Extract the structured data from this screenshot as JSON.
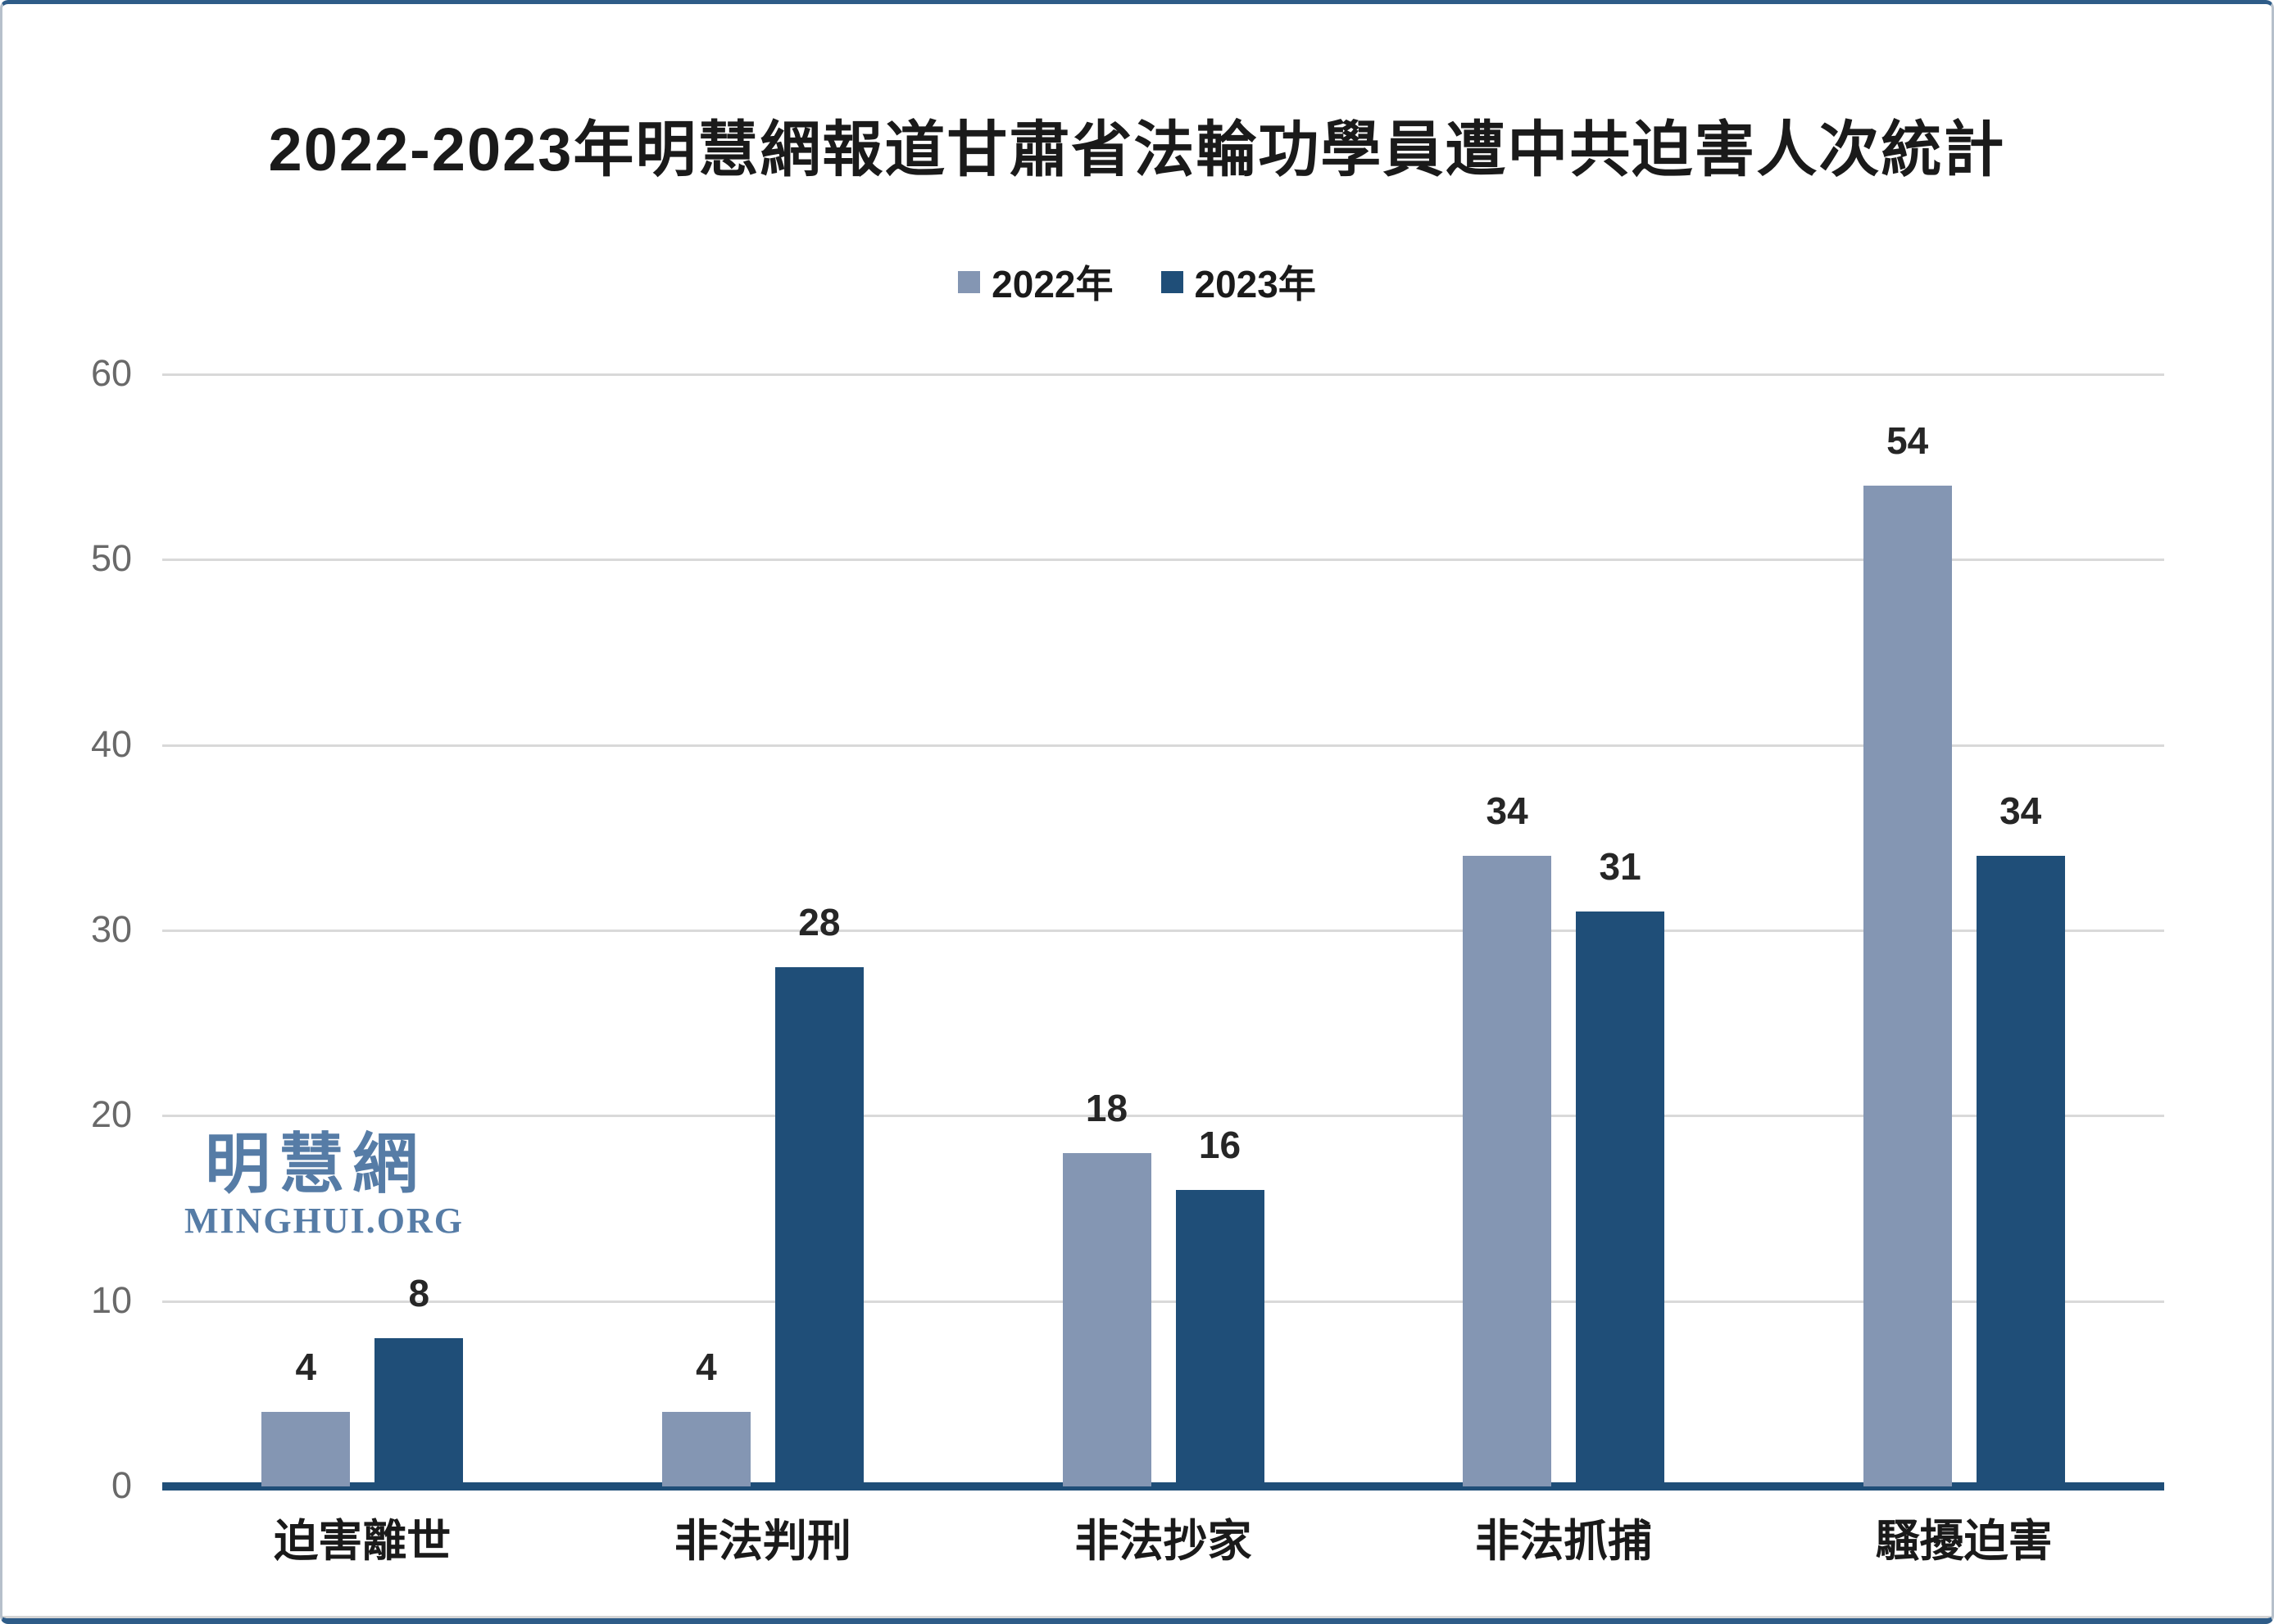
{
  "title": "2022-2023年明慧網報道甘肅省法輪功學員遭中共迫害人次統計",
  "watermark": {
    "cjk": "明慧網",
    "latin": "MINGHUI.ORG"
  },
  "colors": {
    "series_2022": "#8496b3",
    "series_2023": "#1f4e78",
    "axis_line": "#1f4e78",
    "gridline": "#d9d9d9",
    "tick_text": "#696969",
    "label_text": "#262626",
    "watermark": "#567ca6",
    "frame": "#2e5c88"
  },
  "chart_data": {
    "type": "bar",
    "categories": [
      "迫害離世",
      "非法判刑",
      "非法抄家",
      "非法抓捕",
      "騷擾迫害"
    ],
    "series": [
      {
        "name": "2022年",
        "color": "#8496b3",
        "values": [
          4,
          4,
          18,
          34,
          54
        ]
      },
      {
        "name": "2023年",
        "color": "#1f4e78",
        "values": [
          8,
          28,
          16,
          31,
          34
        ]
      }
    ],
    "ylim": [
      0,
      60
    ],
    "yticks": [
      0,
      10,
      20,
      30,
      40,
      50,
      60
    ],
    "grid": true,
    "legend_position": "top",
    "xlabel": "",
    "ylabel": ""
  }
}
